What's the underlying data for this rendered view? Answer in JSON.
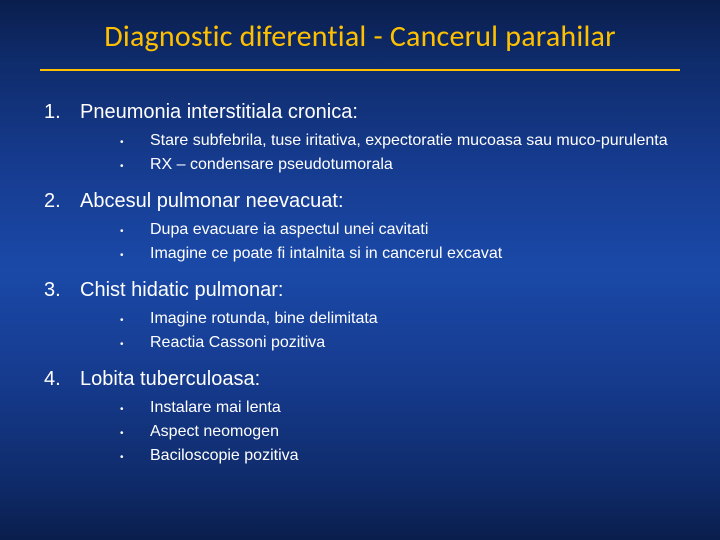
{
  "slide": {
    "title": "Diagnostic diferential - Cancerul parahilar",
    "title_color": "#ffc000",
    "title_fontsize": 30,
    "body_color": "#ffffff",
    "top_fontsize": 20,
    "sub_fontsize": 16,
    "background_gradient": [
      "#0a1e4d",
      "#0e2a68",
      "#163b8e",
      "#1a49a8",
      "#163b8e",
      "#0e2a68",
      "#0a1e4d"
    ],
    "items": [
      {
        "num": "1.",
        "label": "Pneumonia interstitiala cronica:",
        "subs": [
          "Stare subfebrila, tuse iritativa, expectoratie mucoasa sau muco-purulenta",
          "RX – condensare pseudotumorala"
        ]
      },
      {
        "num": "2.",
        "label": "Abcesul pulmonar neevacuat:",
        "subs": [
          "Dupa evacuare ia aspectul unei cavitati",
          "Imagine ce poate fi intalnita si in cancerul excavat"
        ]
      },
      {
        "num": "3.",
        "label": "Chist hidatic pulmonar:",
        "subs": [
          "Imagine rotunda, bine delimitata",
          "Reactia Cassoni pozitiva"
        ]
      },
      {
        "num": "4.",
        "label": "Lobita tuberculoasa:",
        "subs": [
          "Instalare mai lenta",
          "Aspect neomogen",
          "Baciloscopie pozitiva"
        ]
      }
    ]
  }
}
